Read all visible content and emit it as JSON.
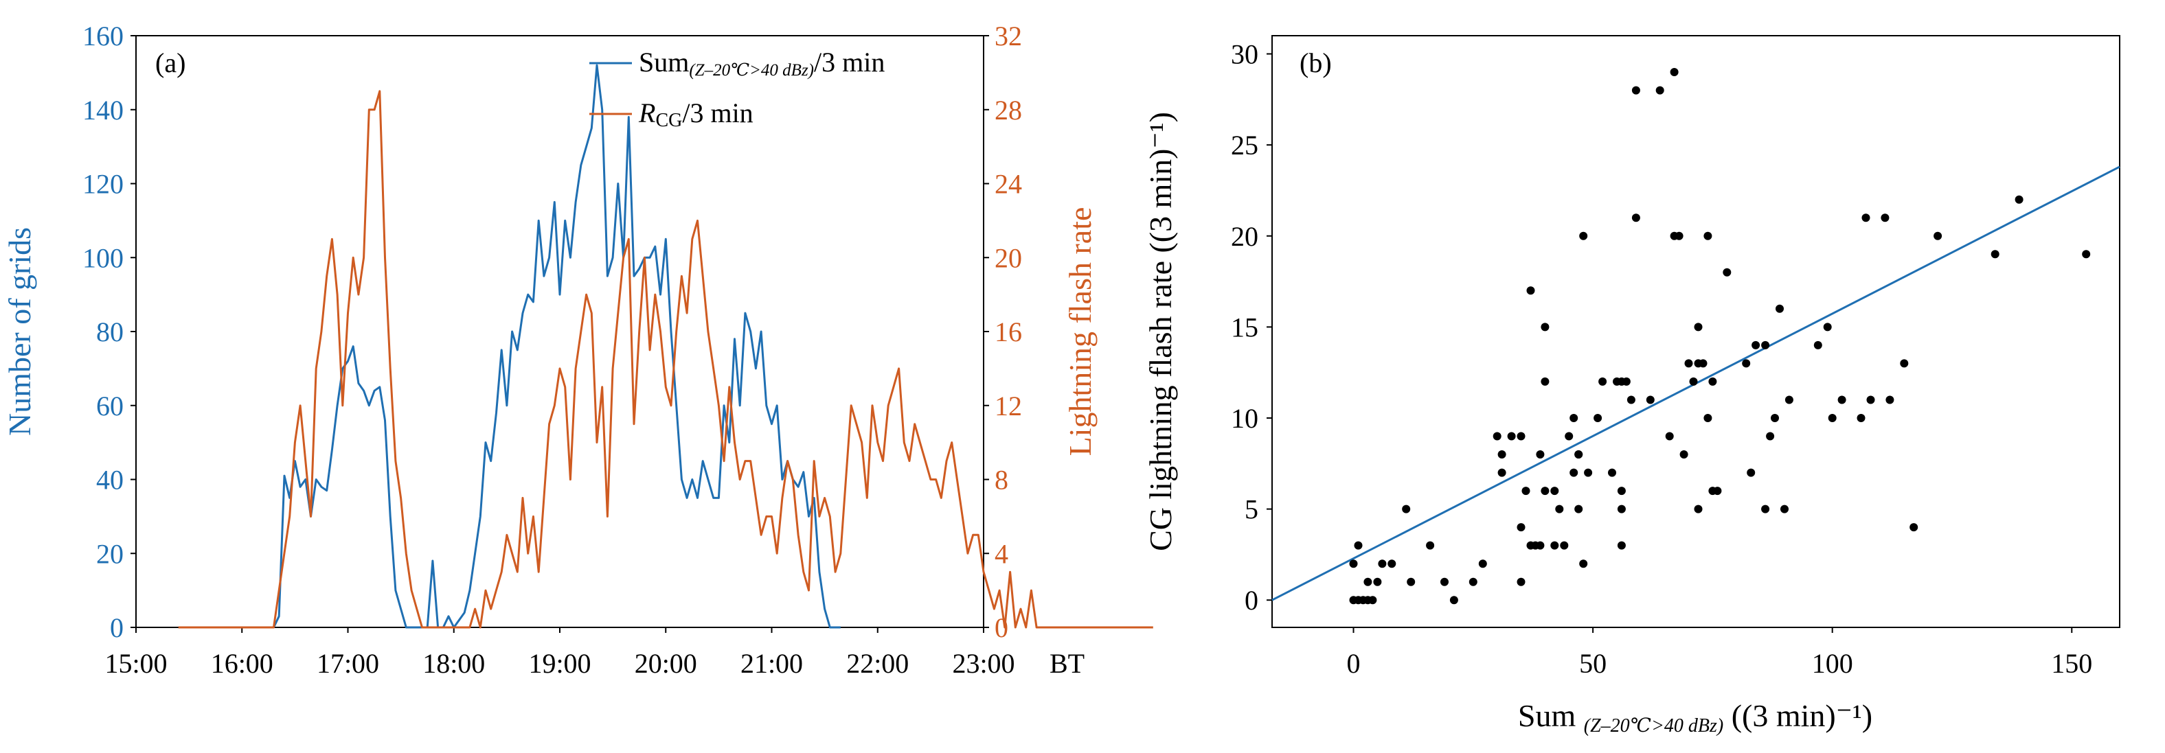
{
  "colors": {
    "blue": "#1f6fb2",
    "orange": "#cf5b21",
    "black": "#000000"
  },
  "chart_data": [
    {
      "type": "line",
      "panel_label": "(a)",
      "xlabel": "BT",
      "x_tick_labels": [
        "15:00",
        "16:00",
        "17:00",
        "18:00",
        "19:00",
        "20:00",
        "21:00",
        "22:00",
        "23:00"
      ],
      "xlim_hours": [
        15,
        23
      ],
      "left_axis": {
        "label": "Number of grids",
        "ylim": [
          0,
          160
        ],
        "ticks": [
          "0",
          "20",
          "40",
          "60",
          "80",
          "100",
          "120",
          "140",
          "160"
        ]
      },
      "right_axis": {
        "label": "Lightning flash rate",
        "ylim": [
          0,
          32
        ],
        "ticks": [
          "0",
          "4",
          "8",
          "12",
          "16",
          "20",
          "24",
          "28",
          "32"
        ]
      },
      "legend": {
        "sum": {
          "main": "Sum",
          "sub": "(Z–20℃>40 dBz)",
          "rest": "/3 min"
        },
        "rcg": {
          "main": "R",
          "sub": "CG",
          "rest": "/3 min"
        }
      },
      "series": [
        {
          "name": "Sum(Z–20℃>40 dBz)/3 min",
          "axis": "left",
          "color": "#1f6fb2",
          "start_hour": 16.3,
          "step_min": 3,
          "values": [
            0,
            3,
            41,
            35,
            45,
            38,
            40,
            30,
            40,
            38,
            37,
            48,
            60,
            70,
            72,
            76,
            66,
            64,
            60,
            64,
            65,
            56,
            30,
            10,
            5,
            0,
            0,
            0,
            0,
            0,
            18,
            0,
            0,
            3,
            0,
            2,
            4,
            10,
            20,
            30,
            50,
            45,
            58,
            75,
            60,
            80,
            75,
            85,
            90,
            88,
            110,
            95,
            100,
            115,
            90,
            110,
            100,
            115,
            125,
            130,
            135,
            152,
            140,
            95,
            100,
            120,
            100,
            138,
            95,
            97,
            100,
            100,
            103,
            90,
            105,
            80,
            60,
            40,
            35,
            40,
            35,
            45,
            40,
            35,
            35,
            60,
            50,
            78,
            60,
            85,
            80,
            70,
            80,
            60,
            55,
            60,
            40,
            45,
            40,
            38,
            42,
            30,
            35,
            15,
            5,
            0,
            0,
            0
          ]
        },
        {
          "name": "RCG/3 min",
          "axis": "right",
          "color": "#cf5b21",
          "start_hour": 15.4,
          "step_min": 3,
          "values": [
            0,
            0,
            0,
            0,
            0,
            0,
            0,
            0,
            0,
            0,
            0,
            0,
            0,
            0,
            0,
            0,
            0,
            0,
            0,
            2,
            4,
            6,
            10,
            12,
            9,
            6,
            14,
            16,
            19,
            21,
            18,
            12,
            17,
            20,
            18,
            20,
            28,
            28,
            29,
            20,
            14,
            9,
            7,
            4,
            2,
            1,
            0,
            0,
            0,
            0,
            0,
            0,
            0,
            0,
            0,
            0,
            1,
            0,
            2,
            1,
            2,
            3,
            5,
            4,
            3,
            7,
            4,
            6,
            3,
            7,
            11,
            12,
            14,
            13,
            8,
            14,
            16,
            18,
            17,
            10,
            13,
            6,
            14,
            17,
            20,
            21,
            11,
            16,
            20,
            15,
            18,
            16,
            13,
            12,
            16,
            19,
            17,
            21,
            22,
            19,
            16,
            14,
            12,
            9,
            13,
            10,
            8,
            9,
            9,
            7,
            5,
            6,
            6,
            4,
            7,
            9,
            8,
            5,
            3,
            2,
            9,
            6,
            7,
            6,
            3,
            4,
            8,
            12,
            11,
            10,
            7,
            12,
            10,
            9,
            12,
            13,
            14,
            10,
            9,
            11,
            10,
            9,
            8,
            8,
            7,
            9,
            10,
            8,
            6,
            4,
            5,
            5,
            3,
            2,
            1,
            2,
            0,
            3,
            0,
            1,
            0,
            2,
            0,
            0,
            0,
            0,
            0,
            0,
            0,
            0,
            0,
            0,
            0,
            0,
            0,
            0,
            0,
            0,
            0,
            0,
            0,
            0,
            0,
            0,
            0
          ]
        }
      ]
    },
    {
      "type": "scatter",
      "panel_label": "(b)",
      "ylabel": "CG lightning flash rate ((3 min)⁻¹)",
      "xlabel": {
        "main": "Sum ",
        "sub": "(Z–20℃>40 dBz)",
        "rest": " ((3 min)⁻¹)"
      },
      "xlim": [
        -17,
        160
      ],
      "ylim": [
        -1.5,
        31
      ],
      "x_ticks": [
        0,
        50,
        100,
        150
      ],
      "y_ticks": [
        0,
        5,
        10,
        15,
        20,
        25,
        30
      ],
      "fit_line": {
        "x1": -17,
        "y1": 0,
        "x2": 160,
        "y2": 23.8,
        "color": "#1f6fb2"
      },
      "points": [
        [
          0,
          0
        ],
        [
          1,
          0
        ],
        [
          2,
          0
        ],
        [
          3,
          0
        ],
        [
          4,
          0
        ],
        [
          0,
          2
        ],
        [
          1,
          3
        ],
        [
          3,
          1
        ],
        [
          5,
          1
        ],
        [
          6,
          2
        ],
        [
          8,
          2
        ],
        [
          11,
          5
        ],
        [
          12,
          1
        ],
        [
          16,
          3
        ],
        [
          19,
          1
        ],
        [
          21,
          0
        ],
        [
          25,
          1
        ],
        [
          27,
          2
        ],
        [
          30,
          9
        ],
        [
          31,
          8
        ],
        [
          31,
          7
        ],
        [
          33,
          9
        ],
        [
          35,
          9
        ],
        [
          35,
          1
        ],
        [
          36,
          6
        ],
        [
          35,
          4
        ],
        [
          37,
          3
        ],
        [
          37,
          17
        ],
        [
          38,
          3
        ],
        [
          39,
          8
        ],
        [
          39,
          3
        ],
        [
          40,
          15
        ],
        [
          40,
          6
        ],
        [
          40,
          12
        ],
        [
          42,
          6
        ],
        [
          42,
          3
        ],
        [
          43,
          5
        ],
        [
          44,
          3
        ],
        [
          45,
          9
        ],
        [
          46,
          10
        ],
        [
          46,
          7
        ],
        [
          47,
          8
        ],
        [
          47,
          8
        ],
        [
          47,
          5
        ],
        [
          48,
          2
        ],
        [
          48,
          20
        ],
        [
          49,
          7
        ],
        [
          51,
          10
        ],
        [
          52,
          12
        ],
        [
          54,
          7
        ],
        [
          55,
          12
        ],
        [
          56,
          12
        ],
        [
          56,
          6
        ],
        [
          56,
          5
        ],
        [
          56,
          3
        ],
        [
          57,
          12
        ],
        [
          58,
          11
        ],
        [
          59,
          21
        ],
        [
          59,
          28
        ],
        [
          62,
          11
        ],
        [
          64,
          28
        ],
        [
          66,
          9
        ],
        [
          67,
          29
        ],
        [
          67,
          20
        ],
        [
          68,
          20
        ],
        [
          69,
          8
        ],
        [
          70,
          13
        ],
        [
          71,
          12
        ],
        [
          72,
          15
        ],
        [
          72,
          13
        ],
        [
          72,
          5
        ],
        [
          73,
          13
        ],
        [
          74,
          10
        ],
        [
          74,
          20
        ],
        [
          75,
          12
        ],
        [
          75,
          6
        ],
        [
          76,
          6
        ],
        [
          78,
          18
        ],
        [
          82,
          13
        ],
        [
          83,
          7
        ],
        [
          84,
          14
        ],
        [
          86,
          14
        ],
        [
          86,
          5
        ],
        [
          87,
          9
        ],
        [
          88,
          10
        ],
        [
          89,
          16
        ],
        [
          90,
          5
        ],
        [
          91,
          11
        ],
        [
          97,
          14
        ],
        [
          99,
          15
        ],
        [
          100,
          10
        ],
        [
          102,
          11
        ],
        [
          106,
          10
        ],
        [
          107,
          21
        ],
        [
          108,
          11
        ],
        [
          111,
          21
        ],
        [
          112,
          11
        ],
        [
          115,
          13
        ],
        [
          117,
          4
        ],
        [
          122,
          20
        ],
        [
          134,
          19
        ],
        [
          139,
          22
        ],
        [
          153,
          19
        ]
      ]
    }
  ]
}
